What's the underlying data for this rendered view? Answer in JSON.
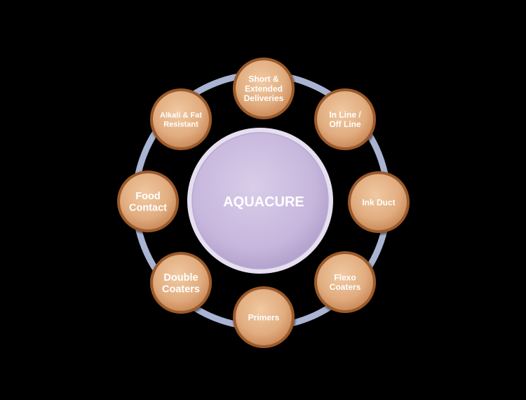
{
  "diagram": {
    "center": {
      "label": "AQUACURE"
    },
    "satellites": [
      {
        "lines": [
          "Short &",
          "Extended",
          "Deliveries"
        ]
      },
      {
        "lines": [
          "In Line /",
          "Off Line"
        ]
      },
      {
        "lines": [
          "Ink Duct"
        ]
      },
      {
        "lines": [
          "Flexo",
          "Coaters"
        ]
      },
      {
        "lines": [
          "Primers"
        ]
      },
      {
        "lines": [
          "Double",
          "Coaters"
        ]
      },
      {
        "lines": [
          "Food",
          "Contact"
        ]
      },
      {
        "lines": [
          "Alkali & Fat",
          "Resistant"
        ]
      }
    ],
    "colors": {
      "background": "#000000",
      "ring": "#a9b3d2",
      "center_fill": "#cdbfe0",
      "center_rim": "#e8e1f1",
      "satellite_fill": "#e8b98d",
      "satellite_rim": "#9c5a2a",
      "text": "#ffffff"
    }
  }
}
